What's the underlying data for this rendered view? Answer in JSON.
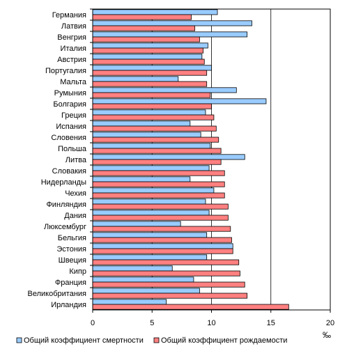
{
  "chart_data": {
    "type": "bar",
    "orientation": "horizontal",
    "categories": [
      "Германия",
      "Латвия",
      "Венгрия",
      "Италия",
      "Австрия",
      "Португалия",
      "Мальта",
      "Румыния",
      "Болгария",
      "Греция",
      "Испания",
      "Словения",
      "Польша",
      "Литва",
      "Словакия",
      "Нидерланды",
      "Чехия",
      "Финляндия",
      "Дания",
      "Люксембург",
      "Бельгия",
      "Эстония",
      "Швеция",
      "Кипр",
      "Франция",
      "Великобритания",
      "Ирландия"
    ],
    "series": [
      {
        "name": "Общий коэффициент смертности",
        "color": "#99ccff",
        "values": [
          10.5,
          13.4,
          13.0,
          9.7,
          9.2,
          10.0,
          7.2,
          12.1,
          14.6,
          9.5,
          8.2,
          9.1,
          9.9,
          12.8,
          9.8,
          8.2,
          10.2,
          9.5,
          9.8,
          7.4,
          9.6,
          11.8,
          9.6,
          6.7,
          8.5,
          9.0,
          6.2
        ]
      },
      {
        "name": "Общий коэффициент рождаемости",
        "color": "#ff8080",
        "values": [
          8.3,
          8.6,
          9.0,
          9.3,
          9.4,
          9.6,
          9.6,
          9.9,
          10.0,
          10.2,
          10.4,
          10.6,
          10.8,
          10.8,
          11.1,
          11.1,
          11.1,
          11.4,
          11.4,
          11.6,
          11.7,
          11.8,
          12.3,
          12.4,
          12.8,
          13.0,
          16.5
        ]
      }
    ],
    "xlim": [
      0,
      20
    ],
    "xticks": [
      "0",
      "5",
      "10",
      "15",
      "20"
    ],
    "unit": "‰",
    "grid": true,
    "legend_position": "bottom"
  }
}
